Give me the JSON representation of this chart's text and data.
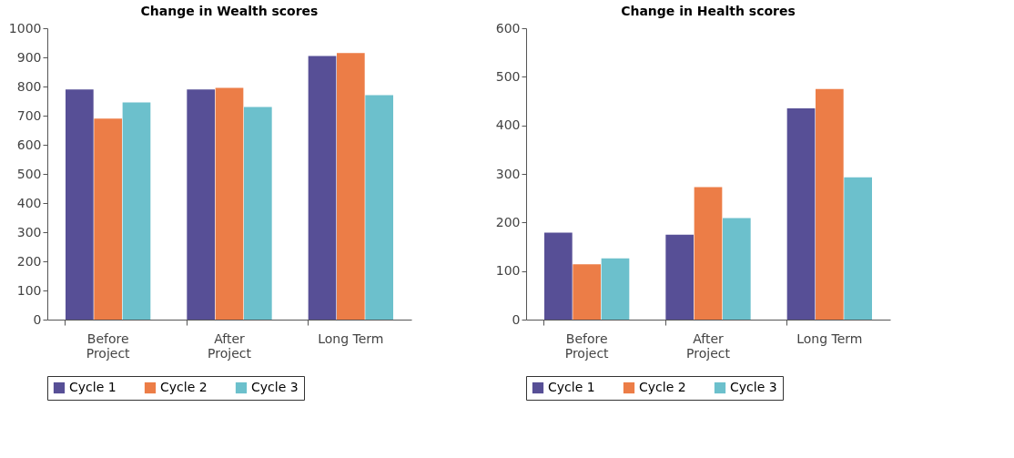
{
  "chart_data": [
    {
      "type": "bar",
      "title": "Change in Wealth scores",
      "categories": [
        "Before Project",
        "After Project",
        "Long Term"
      ],
      "series": [
        {
          "name": "Cycle 1",
          "color": "#574f96",
          "values": [
            790,
            790,
            905
          ]
        },
        {
          "name": "Cycle 2",
          "color": "#ec7d47",
          "values": [
            690,
            795,
            915
          ]
        },
        {
          "name": "Cycle 3",
          "color": "#6cc0cc",
          "values": [
            745,
            730,
            770
          ]
        }
      ],
      "ylim": [
        0,
        1000
      ],
      "yticks": [
        0,
        100,
        200,
        300,
        400,
        500,
        600,
        700,
        800,
        900,
        1000
      ],
      "grid": false,
      "legend": "bottom"
    },
    {
      "type": "bar",
      "title": "Change in Health scores",
      "categories": [
        "Before Project",
        "After Project",
        "Long Term"
      ],
      "series": [
        {
          "name": "Cycle 1",
          "color": "#574f96",
          "values": [
            179,
            175,
            435
          ]
        },
        {
          "name": "Cycle 2",
          "color": "#ec7d47",
          "values": [
            114,
            273,
            475
          ]
        },
        {
          "name": "Cycle 3",
          "color": "#6cc0cc",
          "values": [
            126,
            209,
            293
          ]
        }
      ],
      "ylim": [
        0,
        600
      ],
      "yticks": [
        0,
        100,
        200,
        300,
        400,
        500,
        600
      ],
      "grid": false,
      "legend": "bottom"
    }
  ]
}
